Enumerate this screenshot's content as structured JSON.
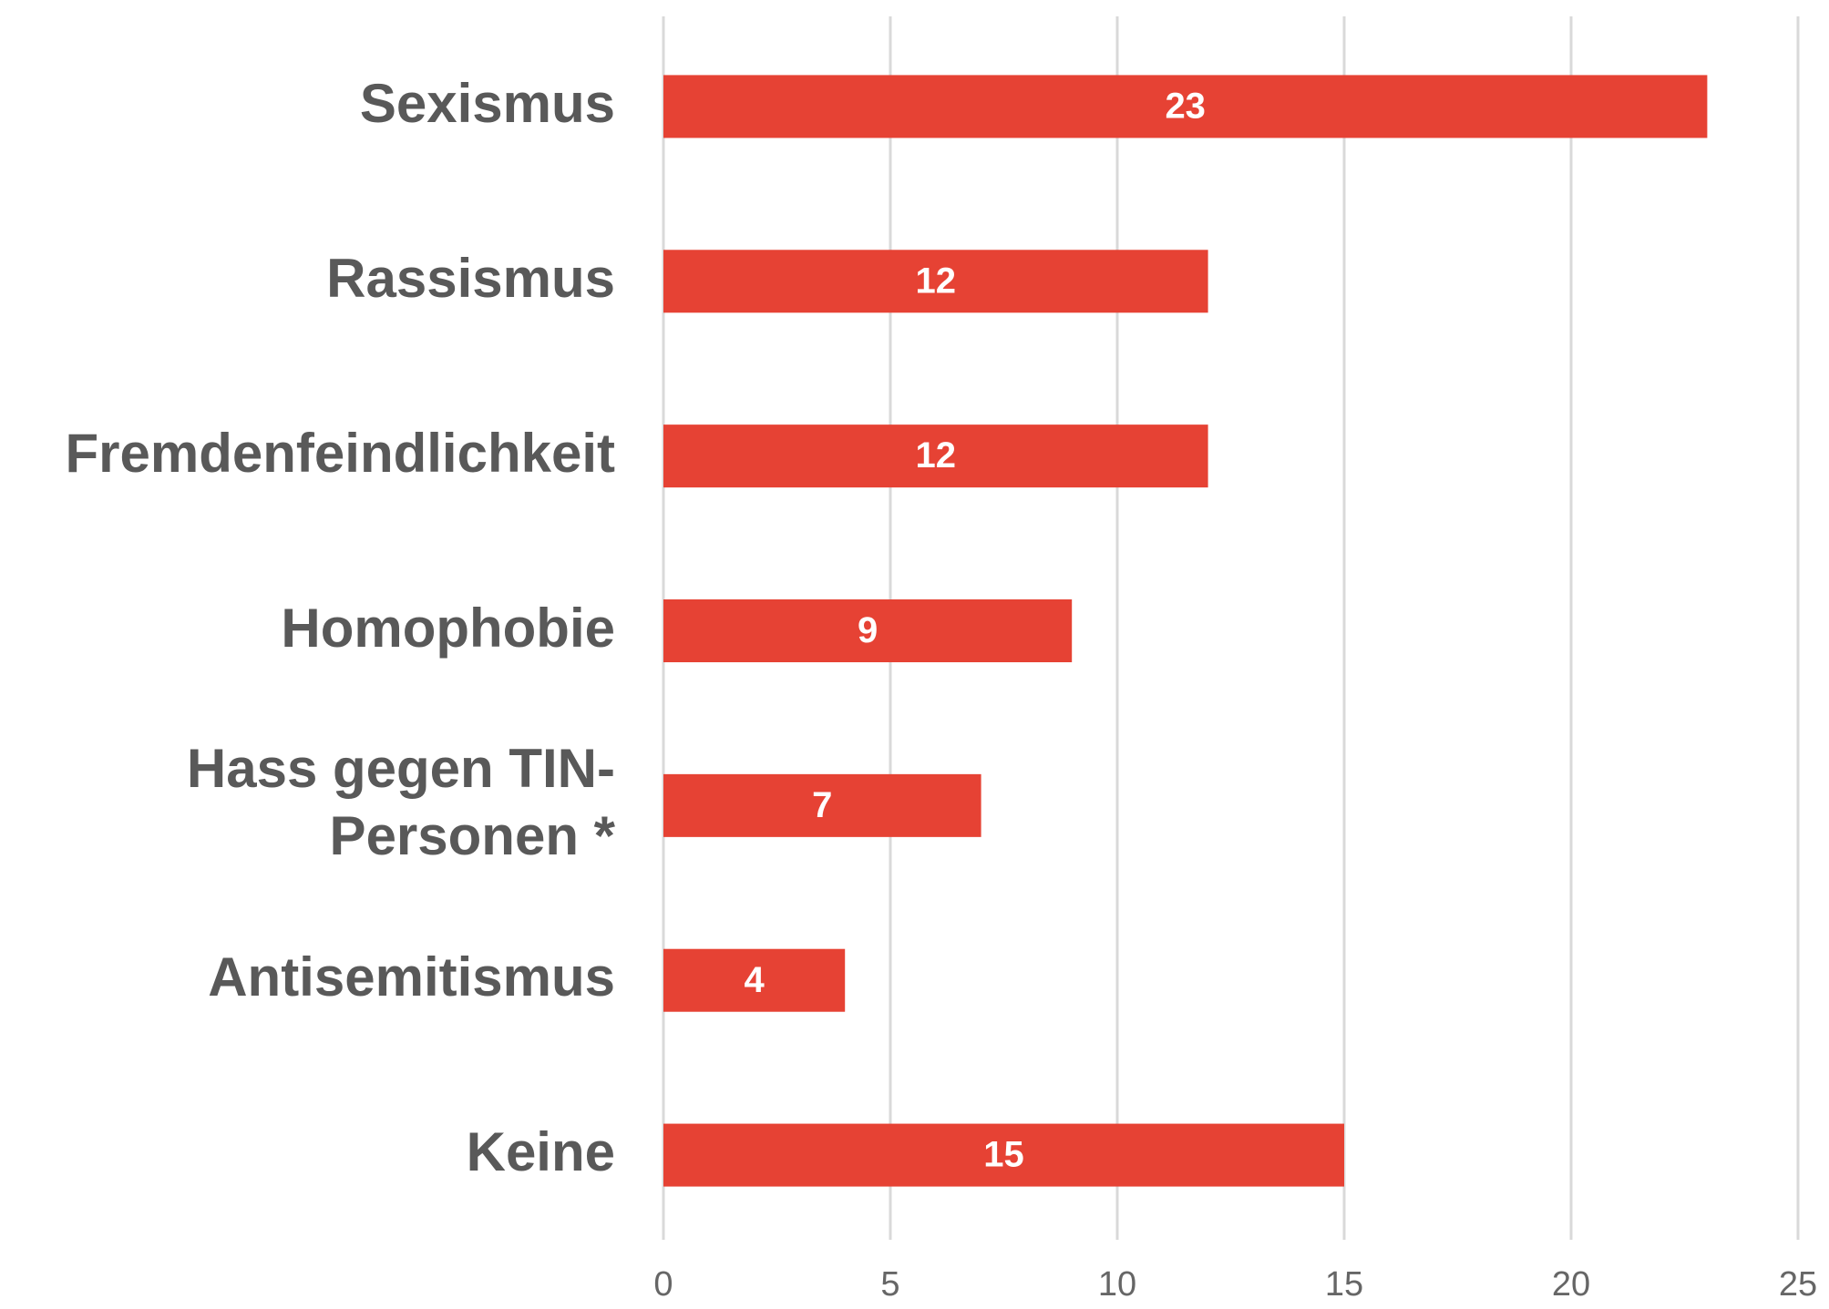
{
  "chart_data": {
    "type": "bar",
    "orientation": "horizontal",
    "categories": [
      "Sexismus",
      "Rassismus",
      "Fremdenfeindlichkeit",
      "Homophobie",
      "Hass gegen TIN-Personen *",
      "Antisemitismus",
      "Keine"
    ],
    "values": [
      23,
      12,
      12,
      9,
      7,
      4,
      15
    ],
    "color": "#e64234",
    "xlim": [
      0,
      25
    ],
    "xticks": [
      0,
      5,
      10,
      15,
      20,
      25
    ],
    "grid": true
  }
}
